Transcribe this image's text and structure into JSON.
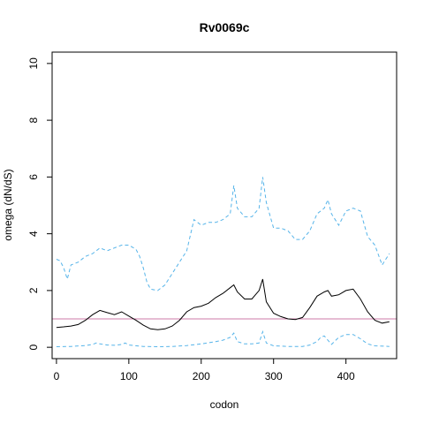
{
  "chart_data": {
    "type": "line",
    "title": "Rv0069c",
    "xlabel": "codon",
    "ylabel": "omega (dN/dS)",
    "xlim": [
      -6,
      470
    ],
    "ylim": [
      -0.4,
      10.4
    ],
    "xticks": [
      0,
      100,
      200,
      300,
      400
    ],
    "yticks": [
      0,
      2,
      4,
      6,
      8,
      10
    ],
    "grid": false,
    "legend": "none",
    "colors": {
      "estimate": "#000000",
      "ci": "#56B4E9",
      "reference": "#CC79A7"
    },
    "reference_line": {
      "y": 1
    },
    "series": [
      {
        "role": "estimate",
        "style": "solid",
        "x": [
          0,
          10,
          20,
          30,
          40,
          50,
          60,
          70,
          80,
          90,
          100,
          110,
          120,
          130,
          140,
          150,
          160,
          170,
          180,
          190,
          200,
          210,
          220,
          230,
          240,
          245,
          250,
          260,
          270,
          280,
          285,
          290,
          300,
          310,
          320,
          330,
          340,
          350,
          360,
          370,
          375,
          380,
          390,
          400,
          410,
          420,
          430,
          440,
          450,
          460
        ],
        "y": [
          0.7,
          0.72,
          0.75,
          0.8,
          0.95,
          1.15,
          1.3,
          1.22,
          1.15,
          1.25,
          1.1,
          0.95,
          0.78,
          0.65,
          0.62,
          0.65,
          0.75,
          0.95,
          1.25,
          1.4,
          1.45,
          1.55,
          1.75,
          1.9,
          2.1,
          2.2,
          1.95,
          1.7,
          1.7,
          2.0,
          2.4,
          1.6,
          1.2,
          1.08,
          1.0,
          0.98,
          1.05,
          1.4,
          1.8,
          1.95,
          2.0,
          1.8,
          1.85,
          2.0,
          2.05,
          1.7,
          1.25,
          0.95,
          0.85,
          0.9
        ]
      },
      {
        "role": "upper",
        "style": "dashed",
        "x": [
          0,
          5,
          10,
          15,
          20,
          30,
          40,
          50,
          60,
          70,
          80,
          90,
          100,
          110,
          115,
          120,
          125,
          130,
          140,
          150,
          160,
          170,
          180,
          190,
          200,
          210,
          220,
          230,
          240,
          245,
          250,
          260,
          270,
          280,
          285,
          290,
          300,
          310,
          320,
          330,
          340,
          350,
          360,
          370,
          375,
          380,
          390,
          400,
          410,
          420,
          430,
          440,
          450,
          460
        ],
        "y": [
          3.1,
          3.05,
          2.8,
          2.4,
          2.9,
          3.0,
          3.2,
          3.3,
          3.5,
          3.4,
          3.5,
          3.6,
          3.6,
          3.45,
          3.2,
          2.8,
          2.3,
          2.05,
          2.0,
          2.2,
          2.6,
          3.0,
          3.4,
          4.5,
          4.3,
          4.4,
          4.4,
          4.5,
          4.7,
          5.7,
          4.9,
          4.6,
          4.6,
          4.9,
          6.0,
          5.1,
          4.2,
          4.2,
          4.1,
          3.8,
          3.8,
          4.1,
          4.7,
          4.9,
          5.2,
          4.7,
          4.3,
          4.8,
          4.9,
          4.8,
          3.9,
          3.6,
          2.9,
          3.3
        ]
      },
      {
        "role": "lower",
        "style": "dashed",
        "x": [
          0,
          20,
          40,
          50,
          55,
          60,
          70,
          80,
          90,
          95,
          100,
          120,
          140,
          160,
          180,
          200,
          220,
          230,
          240,
          245,
          250,
          260,
          270,
          280,
          285,
          290,
          300,
          320,
          340,
          350,
          360,
          365,
          370,
          380,
          390,
          400,
          410,
          420,
          430,
          440,
          460
        ],
        "y": [
          0.02,
          0.03,
          0.06,
          0.1,
          0.15,
          0.12,
          0.08,
          0.07,
          0.1,
          0.15,
          0.08,
          0.03,
          0.02,
          0.03,
          0.06,
          0.12,
          0.2,
          0.25,
          0.35,
          0.5,
          0.2,
          0.12,
          0.12,
          0.15,
          0.55,
          0.15,
          0.05,
          0.03,
          0.03,
          0.08,
          0.2,
          0.35,
          0.4,
          0.1,
          0.35,
          0.45,
          0.45,
          0.3,
          0.12,
          0.05,
          0.03
        ]
      }
    ]
  }
}
